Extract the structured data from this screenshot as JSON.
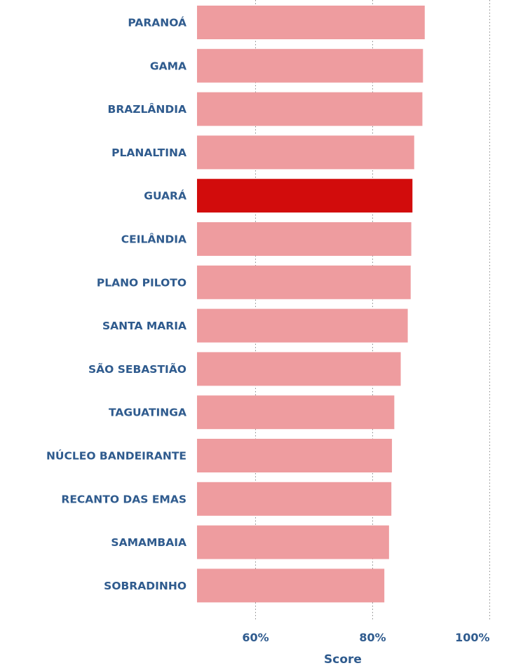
{
  "chart_data": {
    "type": "bar",
    "orientation": "horizontal",
    "categories": [
      "PARANOÁ",
      "GAMA",
      "BRAZLÂNDIA",
      "PLANALTINA",
      "GUARÁ",
      "CEILÂNDIA",
      "PLANO PILOTO",
      "SANTA MARIA",
      "SÃO SEBASTIÃO",
      "TAGUATINGA",
      "NÚCLEO BANDEIRANTE",
      "RECANTO DAS EMAS",
      "SAMAMBAIA",
      "SOBRADINHO"
    ],
    "values": [
      88.9,
      88.6,
      88.5,
      87.1,
      86.8,
      86.6,
      86.5,
      86.0,
      84.8,
      83.7,
      83.3,
      83.2,
      82.8,
      82.0
    ],
    "highlight_category": "GUARÁ",
    "xlabel": "Score",
    "ylabel": "",
    "xlim": [
      50,
      100
    ],
    "xticks": [
      60,
      80,
      100
    ],
    "xtick_labels": [
      "60%",
      "80%",
      "100%"
    ],
    "grid": "vertical dotted",
    "colors": {
      "bar": "#ee9c9f",
      "highlight": "#d20c0c",
      "label": "#2f5b8e",
      "grid": "#8a8a8a"
    }
  }
}
